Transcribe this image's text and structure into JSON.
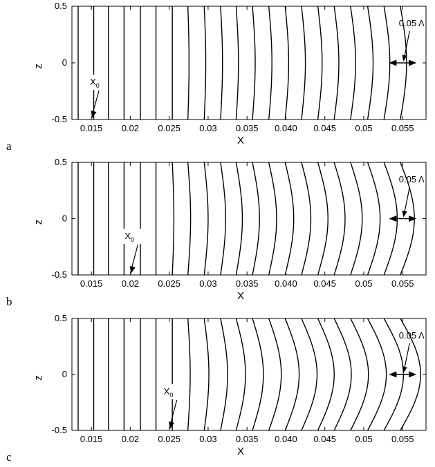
{
  "chart_data": [
    {
      "type": "line",
      "panel_label": "a",
      "xlabel": "X",
      "ylabel": "z",
      "xlim": [
        0.0125,
        0.058
      ],
      "ylim": [
        -0.5,
        0.5
      ],
      "xticks": [
        0.015,
        0.02,
        0.025,
        0.03,
        0.035,
        0.04,
        0.045,
        0.05,
        0.055
      ],
      "xtick_labels": [
        "0.015",
        "0.02",
        "0.025",
        "0.03",
        "0.035",
        "0.040",
        "0.045",
        "0.05",
        "0.055"
      ],
      "yticks": [
        -0.5,
        0,
        0.5
      ],
      "ytick_labels": [
        "-0.5",
        "0",
        "0.5"
      ],
      "grid": false,
      "series_description": "vertical lines x(z) = x0 + A*exp(-k*(x0 - 0.015))*cos(pi*z) style displacement",
      "line_base_positions": [
        0.0133,
        0.0153,
        0.0172,
        0.0192,
        0.0213,
        0.0233,
        0.0254,
        0.0274,
        0.0295,
        0.0316,
        0.0336,
        0.0357,
        0.0378,
        0.0399,
        0.042,
        0.0441,
        0.0462,
        0.0483,
        0.0505,
        0.0526,
        0.0547
      ],
      "line_bulge_amplitudes": [
        0,
        0,
        0,
        0,
        0,
        0,
        0,
        0.00015,
        0.0002,
        0.00025,
        0.0003,
        0.00035,
        0.0004,
        0.00045,
        0.0005,
        0.00055,
        0.0006,
        0.00065,
        0.0007,
        0.00075,
        0.0008
      ],
      "source_marker": {
        "label": "X",
        "subscript": "0",
        "x": 0.015
      },
      "amplitude_annotation": {
        "label": "0.05 Λ",
        "x": 0.055,
        "z": 0
      }
    },
    {
      "type": "line",
      "panel_label": "b",
      "xlabel": "X",
      "ylabel": "z",
      "xlim": [
        0.0125,
        0.058
      ],
      "ylim": [
        -0.5,
        0.5
      ],
      "xticks": [
        0.015,
        0.02,
        0.025,
        0.03,
        0.035,
        0.04,
        0.045,
        0.05,
        0.055
      ],
      "xtick_labels": [
        "0.015",
        "0.02",
        "0.025",
        "0.03",
        "0.035",
        "0.040",
        "0.045",
        "0.05",
        "0.055"
      ],
      "yticks": [
        -0.5,
        0,
        0.5
      ],
      "ytick_labels": [
        "-0.5",
        "0",
        "0.5"
      ],
      "grid": false,
      "line_base_positions": [
        0.0133,
        0.0153,
        0.0172,
        0.0192,
        0.0213,
        0.0233,
        0.0254,
        0.0274,
        0.0295,
        0.0316,
        0.0336,
        0.0357,
        0.0378,
        0.0399,
        0.042,
        0.0441,
        0.0462,
        0.0483,
        0.0505,
        0.0526,
        0.0547
      ],
      "line_bulge_amplitudes": [
        0,
        0,
        0,
        0,
        0,
        0,
        0.0002,
        0.00035,
        0.0005,
        0.00065,
        0.0008,
        0.0009,
        0.001,
        0.0011,
        0.0012,
        0.0013,
        0.0014,
        0.0015,
        0.0016,
        0.0017,
        0.0018
      ],
      "source_marker": {
        "label": "X",
        "subscript": "0",
        "x": 0.02
      },
      "amplitude_annotation": {
        "label": "0.05 Λ",
        "x": 0.055,
        "z": 0
      }
    },
    {
      "type": "line",
      "panel_label": "c",
      "xlabel": "X",
      "ylabel": "z",
      "xlim": [
        0.0125,
        0.058
      ],
      "ylim": [
        -0.5,
        0.5
      ],
      "xticks": [
        0.015,
        0.02,
        0.025,
        0.03,
        0.035,
        0.04,
        0.045,
        0.05,
        0.055
      ],
      "xtick_labels": [
        "0.015",
        "0.02",
        "0.025",
        "0.03",
        "0.035",
        "0.040",
        "0.045",
        "0.05",
        "0.055"
      ],
      "yticks": [
        -0.5,
        0,
        0.5
      ],
      "ytick_labels": [
        "-0.5",
        "0",
        "0.5"
      ],
      "grid": false,
      "line_base_positions": [
        0.0133,
        0.0153,
        0.0172,
        0.0192,
        0.0213,
        0.0233,
        0.0254,
        0.0274,
        0.0295,
        0.0316,
        0.0336,
        0.0357,
        0.0378,
        0.0399,
        0.042,
        0.0441,
        0.0462,
        0.0483,
        0.0505,
        0.0526,
        0.0547
      ],
      "line_bulge_amplitudes": [
        0,
        0,
        0,
        0,
        0,
        0,
        0,
        0.0003,
        0.0006,
        0.0009,
        0.0012,
        0.0014,
        0.0016,
        0.0018,
        0.002,
        0.0021,
        0.0022,
        0.0023,
        0.0024,
        0.0025,
        0.0026
      ],
      "source_marker": {
        "label": "X",
        "subscript": "0",
        "x": 0.025
      },
      "amplitude_annotation": {
        "label": "0.05 Λ",
        "x": 0.055,
        "z": 0
      }
    }
  ]
}
